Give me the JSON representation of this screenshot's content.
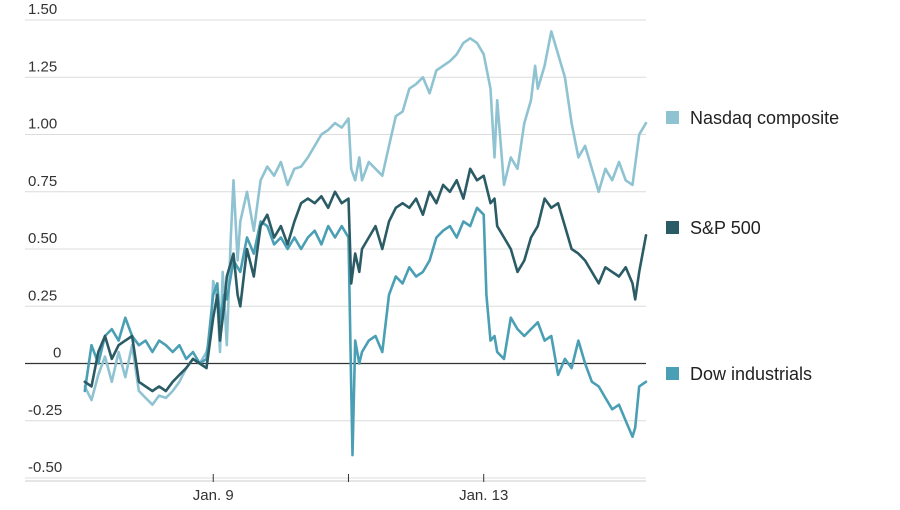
{
  "chart_data": {
    "type": "line",
    "title": "",
    "xlabel": "",
    "ylabel": "",
    "ylim": [
      -0.5,
      1.5
    ],
    "y_ticks": [
      {
        "value": 1.5,
        "label": "1.50"
      },
      {
        "value": 1.25,
        "label": "1.25"
      },
      {
        "value": 1.0,
        "label": "1.00"
      },
      {
        "value": 0.75,
        "label": "0.75"
      },
      {
        "value": 0.5,
        "label": "0.50"
      },
      {
        "value": 0.25,
        "label": "0.25"
      },
      {
        "value": 0,
        "label": "0"
      },
      {
        "value": -0.25,
        "label": "-0.25"
      },
      {
        "value": -0.5,
        "label": "-0.50"
      }
    ],
    "x_range": [
      0,
      4.2
    ],
    "x_ticks": [
      {
        "value": 1.0,
        "label": "Jan. 9"
      },
      {
        "value": 2.0,
        "label": ""
      },
      {
        "value": 3.0,
        "label": "Jan. 13"
      }
    ],
    "grid": true,
    "legend_position": "right",
    "series": [
      {
        "name": "Nasdaq composite",
        "color": "#8fc3d2",
        "points": [
          [
            0.05,
            -0.1
          ],
          [
            0.1,
            -0.16
          ],
          [
            0.15,
            -0.05
          ],
          [
            0.2,
            0.03
          ],
          [
            0.25,
            -0.08
          ],
          [
            0.3,
            0.05
          ],
          [
            0.35,
            -0.06
          ],
          [
            0.4,
            0.08
          ],
          [
            0.45,
            -0.12
          ],
          [
            0.5,
            -0.15
          ],
          [
            0.55,
            -0.18
          ],
          [
            0.6,
            -0.14
          ],
          [
            0.65,
            -0.15
          ],
          [
            0.7,
            -0.12
          ],
          [
            0.75,
            -0.08
          ],
          [
            0.8,
            -0.02
          ],
          [
            0.85,
            0.02
          ],
          [
            0.9,
            0.0
          ],
          [
            0.95,
            0.05
          ],
          [
            0.98,
            0.12
          ],
          [
            1.0,
            0.36
          ],
          [
            1.03,
            0.28
          ],
          [
            1.05,
            0.05
          ],
          [
            1.07,
            0.4
          ],
          [
            1.1,
            0.08
          ],
          [
            1.13,
            0.55
          ],
          [
            1.15,
            0.8
          ],
          [
            1.18,
            0.45
          ],
          [
            1.2,
            0.62
          ],
          [
            1.25,
            0.75
          ],
          [
            1.3,
            0.58
          ],
          [
            1.35,
            0.8
          ],
          [
            1.4,
            0.86
          ],
          [
            1.45,
            0.82
          ],
          [
            1.5,
            0.88
          ],
          [
            1.55,
            0.78
          ],
          [
            1.6,
            0.85
          ],
          [
            1.65,
            0.86
          ],
          [
            1.7,
            0.9
          ],
          [
            1.75,
            0.95
          ],
          [
            1.8,
            1.0
          ],
          [
            1.85,
            1.02
          ],
          [
            1.9,
            1.05
          ],
          [
            1.95,
            1.03
          ],
          [
            2.0,
            1.07
          ],
          [
            2.02,
            0.85
          ],
          [
            2.05,
            0.8
          ],
          [
            2.08,
            0.9
          ],
          [
            2.1,
            0.8
          ],
          [
            2.15,
            0.88
          ],
          [
            2.2,
            0.85
          ],
          [
            2.25,
            0.82
          ],
          [
            2.3,
            0.95
          ],
          [
            2.35,
            1.08
          ],
          [
            2.4,
            1.1
          ],
          [
            2.45,
            1.2
          ],
          [
            2.5,
            1.22
          ],
          [
            2.55,
            1.25
          ],
          [
            2.6,
            1.18
          ],
          [
            2.65,
            1.28
          ],
          [
            2.7,
            1.3
          ],
          [
            2.75,
            1.32
          ],
          [
            2.8,
            1.35
          ],
          [
            2.85,
            1.4
          ],
          [
            2.9,
            1.42
          ],
          [
            2.95,
            1.4
          ],
          [
            3.0,
            1.35
          ],
          [
            3.05,
            1.2
          ],
          [
            3.08,
            0.9
          ],
          [
            3.1,
            1.15
          ],
          [
            3.15,
            0.78
          ],
          [
            3.2,
            0.9
          ],
          [
            3.25,
            0.85
          ],
          [
            3.3,
            1.05
          ],
          [
            3.35,
            1.15
          ],
          [
            3.38,
            1.3
          ],
          [
            3.4,
            1.2
          ],
          [
            3.45,
            1.3
          ],
          [
            3.5,
            1.45
          ],
          [
            3.55,
            1.35
          ],
          [
            3.6,
            1.25
          ],
          [
            3.65,
            1.05
          ],
          [
            3.7,
            0.9
          ],
          [
            3.75,
            0.95
          ],
          [
            3.8,
            0.85
          ],
          [
            3.85,
            0.75
          ],
          [
            3.9,
            0.85
          ],
          [
            3.95,
            0.8
          ],
          [
            4.0,
            0.88
          ],
          [
            4.05,
            0.8
          ],
          [
            4.1,
            0.78
          ],
          [
            4.15,
            1.0
          ],
          [
            4.2,
            1.05
          ]
        ]
      },
      {
        "name": "S&P 500",
        "color": "#2b5c66",
        "points": [
          [
            0.05,
            -0.08
          ],
          [
            0.1,
            -0.1
          ],
          [
            0.15,
            0.05
          ],
          [
            0.2,
            0.12
          ],
          [
            0.25,
            0.02
          ],
          [
            0.3,
            0.08
          ],
          [
            0.35,
            0.1
          ],
          [
            0.4,
            0.12
          ],
          [
            0.45,
            -0.08
          ],
          [
            0.5,
            -0.1
          ],
          [
            0.55,
            -0.12
          ],
          [
            0.6,
            -0.1
          ],
          [
            0.65,
            -0.12
          ],
          [
            0.7,
            -0.08
          ],
          [
            0.75,
            -0.05
          ],
          [
            0.8,
            -0.02
          ],
          [
            0.85,
            0.02
          ],
          [
            0.9,
            0.0
          ],
          [
            0.95,
            -0.02
          ],
          [
            1.0,
            0.2
          ],
          [
            1.03,
            0.3
          ],
          [
            1.05,
            0.1
          ],
          [
            1.08,
            0.25
          ],
          [
            1.1,
            0.38
          ],
          [
            1.15,
            0.48
          ],
          [
            1.18,
            0.3
          ],
          [
            1.2,
            0.25
          ],
          [
            1.25,
            0.5
          ],
          [
            1.3,
            0.38
          ],
          [
            1.35,
            0.6
          ],
          [
            1.4,
            0.65
          ],
          [
            1.45,
            0.55
          ],
          [
            1.5,
            0.6
          ],
          [
            1.55,
            0.52
          ],
          [
            1.6,
            0.62
          ],
          [
            1.65,
            0.7
          ],
          [
            1.7,
            0.72
          ],
          [
            1.75,
            0.7
          ],
          [
            1.8,
            0.73
          ],
          [
            1.85,
            0.68
          ],
          [
            1.9,
            0.75
          ],
          [
            1.95,
            0.7
          ],
          [
            2.0,
            0.72
          ],
          [
            2.02,
            0.35
          ],
          [
            2.05,
            0.48
          ],
          [
            2.08,
            0.4
          ],
          [
            2.1,
            0.5
          ],
          [
            2.15,
            0.55
          ],
          [
            2.2,
            0.6
          ],
          [
            2.25,
            0.5
          ],
          [
            2.3,
            0.62
          ],
          [
            2.35,
            0.68
          ],
          [
            2.4,
            0.7
          ],
          [
            2.45,
            0.68
          ],
          [
            2.5,
            0.72
          ],
          [
            2.55,
            0.65
          ],
          [
            2.6,
            0.75
          ],
          [
            2.65,
            0.7
          ],
          [
            2.7,
            0.78
          ],
          [
            2.75,
            0.75
          ],
          [
            2.8,
            0.8
          ],
          [
            2.85,
            0.72
          ],
          [
            2.9,
            0.85
          ],
          [
            2.95,
            0.8
          ],
          [
            3.0,
            0.82
          ],
          [
            3.05,
            0.7
          ],
          [
            3.08,
            0.72
          ],
          [
            3.1,
            0.6
          ],
          [
            3.15,
            0.55
          ],
          [
            3.2,
            0.5
          ],
          [
            3.25,
            0.4
          ],
          [
            3.3,
            0.45
          ],
          [
            3.35,
            0.55
          ],
          [
            3.4,
            0.6
          ],
          [
            3.45,
            0.72
          ],
          [
            3.5,
            0.68
          ],
          [
            3.55,
            0.7
          ],
          [
            3.6,
            0.6
          ],
          [
            3.65,
            0.5
          ],
          [
            3.7,
            0.48
          ],
          [
            3.75,
            0.45
          ],
          [
            3.8,
            0.4
          ],
          [
            3.85,
            0.35
          ],
          [
            3.9,
            0.42
          ],
          [
            3.95,
            0.4
          ],
          [
            4.0,
            0.38
          ],
          [
            4.05,
            0.42
          ],
          [
            4.1,
            0.35
          ],
          [
            4.12,
            0.28
          ],
          [
            4.15,
            0.4
          ],
          [
            4.2,
            0.56
          ]
        ]
      },
      {
        "name": "Dow industrials",
        "color": "#4a9fb4",
        "points": [
          [
            0.05,
            -0.12
          ],
          [
            0.1,
            0.08
          ],
          [
            0.15,
            0.0
          ],
          [
            0.2,
            0.12
          ],
          [
            0.25,
            0.15
          ],
          [
            0.3,
            0.1
          ],
          [
            0.35,
            0.2
          ],
          [
            0.4,
            0.12
          ],
          [
            0.45,
            0.08
          ],
          [
            0.5,
            0.1
          ],
          [
            0.55,
            0.05
          ],
          [
            0.6,
            0.1
          ],
          [
            0.65,
            0.08
          ],
          [
            0.7,
            0.05
          ],
          [
            0.75,
            0.08
          ],
          [
            0.8,
            0.02
          ],
          [
            0.85,
            0.05
          ],
          [
            0.9,
            0.0
          ],
          [
            0.95,
            0.02
          ],
          [
            1.0,
            0.3
          ],
          [
            1.03,
            0.35
          ],
          [
            1.05,
            0.18
          ],
          [
            1.08,
            0.3
          ],
          [
            1.1,
            0.28
          ],
          [
            1.15,
            0.45
          ],
          [
            1.2,
            0.4
          ],
          [
            1.25,
            0.55
          ],
          [
            1.3,
            0.48
          ],
          [
            1.35,
            0.62
          ],
          [
            1.4,
            0.6
          ],
          [
            1.45,
            0.52
          ],
          [
            1.5,
            0.55
          ],
          [
            1.55,
            0.5
          ],
          [
            1.6,
            0.55
          ],
          [
            1.65,
            0.5
          ],
          [
            1.7,
            0.55
          ],
          [
            1.75,
            0.58
          ],
          [
            1.8,
            0.52
          ],
          [
            1.85,
            0.6
          ],
          [
            1.9,
            0.55
          ],
          [
            1.95,
            0.6
          ],
          [
            2.0,
            0.55
          ],
          [
            2.02,
            -0.1
          ],
          [
            2.03,
            -0.4
          ],
          [
            2.05,
            0.1
          ],
          [
            2.08,
            0.0
          ],
          [
            2.1,
            0.05
          ],
          [
            2.15,
            0.1
          ],
          [
            2.2,
            0.12
          ],
          [
            2.25,
            0.05
          ],
          [
            2.3,
            0.3
          ],
          [
            2.35,
            0.38
          ],
          [
            2.4,
            0.35
          ],
          [
            2.45,
            0.42
          ],
          [
            2.5,
            0.38
          ],
          [
            2.55,
            0.4
          ],
          [
            2.6,
            0.45
          ],
          [
            2.65,
            0.55
          ],
          [
            2.7,
            0.58
          ],
          [
            2.75,
            0.6
          ],
          [
            2.8,
            0.55
          ],
          [
            2.85,
            0.62
          ],
          [
            2.9,
            0.6
          ],
          [
            2.95,
            0.68
          ],
          [
            3.0,
            0.65
          ],
          [
            3.02,
            0.3
          ],
          [
            3.05,
            0.1
          ],
          [
            3.08,
            0.12
          ],
          [
            3.1,
            0.05
          ],
          [
            3.15,
            0.02
          ],
          [
            3.2,
            0.2
          ],
          [
            3.25,
            0.15
          ],
          [
            3.3,
            0.12
          ],
          [
            3.35,
            0.15
          ],
          [
            3.4,
            0.18
          ],
          [
            3.45,
            0.1
          ],
          [
            3.5,
            0.12
          ],
          [
            3.55,
            -0.05
          ],
          [
            3.6,
            0.02
          ],
          [
            3.65,
            -0.02
          ],
          [
            3.7,
            0.1
          ],
          [
            3.75,
            0.0
          ],
          [
            3.8,
            -0.08
          ],
          [
            3.85,
            -0.1
          ],
          [
            3.9,
            -0.15
          ],
          [
            3.95,
            -0.2
          ],
          [
            4.0,
            -0.18
          ],
          [
            4.05,
            -0.25
          ],
          [
            4.1,
            -0.32
          ],
          [
            4.12,
            -0.28
          ],
          [
            4.15,
            -0.1
          ],
          [
            4.2,
            -0.08
          ]
        ]
      }
    ]
  }
}
